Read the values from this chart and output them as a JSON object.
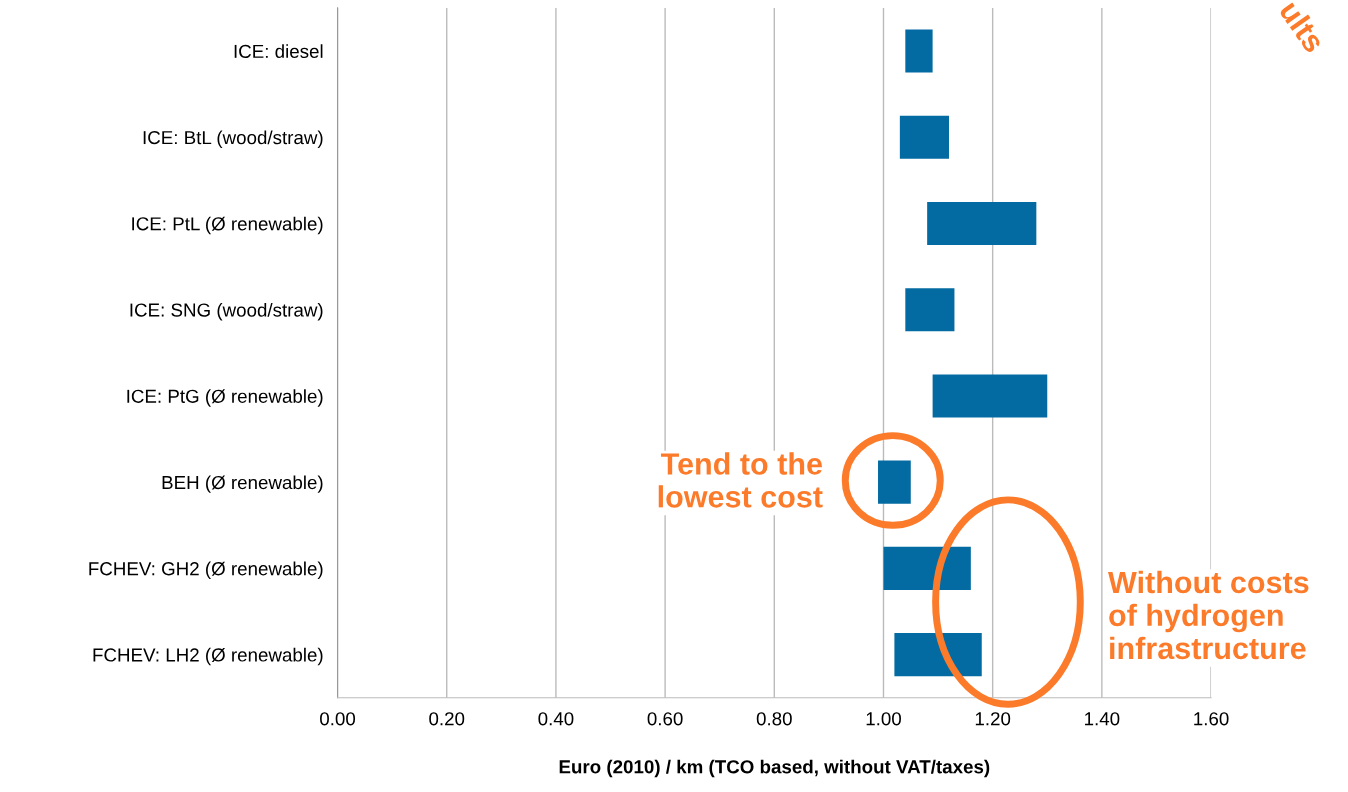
{
  "chart_data": {
    "type": "bar",
    "orientation": "horizontal",
    "xlabel": "Euro (2010) / km (TCO based, without VAT/taxes)",
    "categories": [
      "ICE: diesel",
      "ICE: BtL (wood/straw)",
      "ICE: PtL (Ø renewable)",
      "ICE: SNG (wood/straw)",
      "ICE: PtG (Ø renewable)",
      "BEH (Ø renewable)",
      "FCHEV: GH2 (Ø renewable)",
      "FCHEV: LH2 (Ø renewable)"
    ],
    "base": [
      1.04,
      1.03,
      1.08,
      1.04,
      1.09,
      0.99,
      1.0,
      1.02
    ],
    "values": [
      0.05,
      0.09,
      0.2,
      0.09,
      0.21,
      0.06,
      0.16,
      0.16
    ],
    "color": "#036ba1",
    "xlim": [
      0,
      1.6
    ],
    "xticks": [
      {
        "value": 0,
        "label": "0.00"
      },
      {
        "value": 0.2,
        "label": "0.20"
      },
      {
        "value": 0.4,
        "label": "0.40"
      },
      {
        "value": 0.6,
        "label": "0.60"
      },
      {
        "value": 0.8,
        "label": "0.80"
      },
      {
        "value": 1.0,
        "label": "1.00"
      },
      {
        "value": 1.2,
        "label": "1.20"
      },
      {
        "value": 1.4,
        "label": "1.40"
      },
      {
        "value": 1.6,
        "label": "1.60"
      }
    ],
    "grid": "x",
    "annotations": [
      "Tend to the\nlowest cost",
      "Without costs\nof hydrogen\ninfrastructure",
      "ults"
    ]
  }
}
